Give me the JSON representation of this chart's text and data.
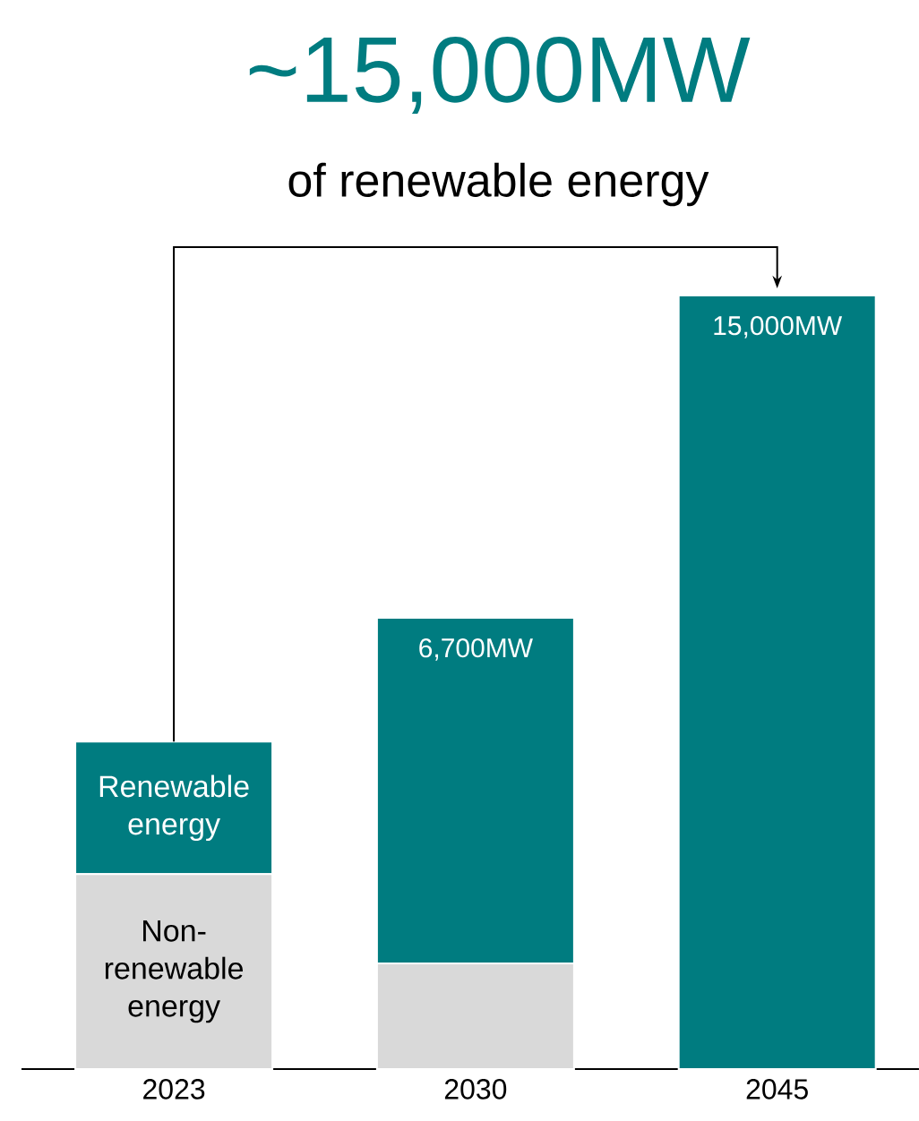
{
  "chart_data": {
    "type": "bar",
    "title": "~15,000MW",
    "subtitle": "of renewable energy",
    "categories": [
      "2023",
      "2030",
      "2045"
    ],
    "stacked": true,
    "ylim": [
      0,
      15000
    ],
    "tick_labels": "x",
    "series": [
      {
        "name": "Non-renewable energy",
        "color": "#d9d9d9",
        "values": [
          3780,
          2050,
          0
        ]
      },
      {
        "name": "Renewable energy",
        "color": "#007c80",
        "values": [
          2570,
          6700,
          15000
        ],
        "value_labels": [
          null,
          "6,700MW",
          "15,000MW"
        ]
      }
    ]
  }
}
